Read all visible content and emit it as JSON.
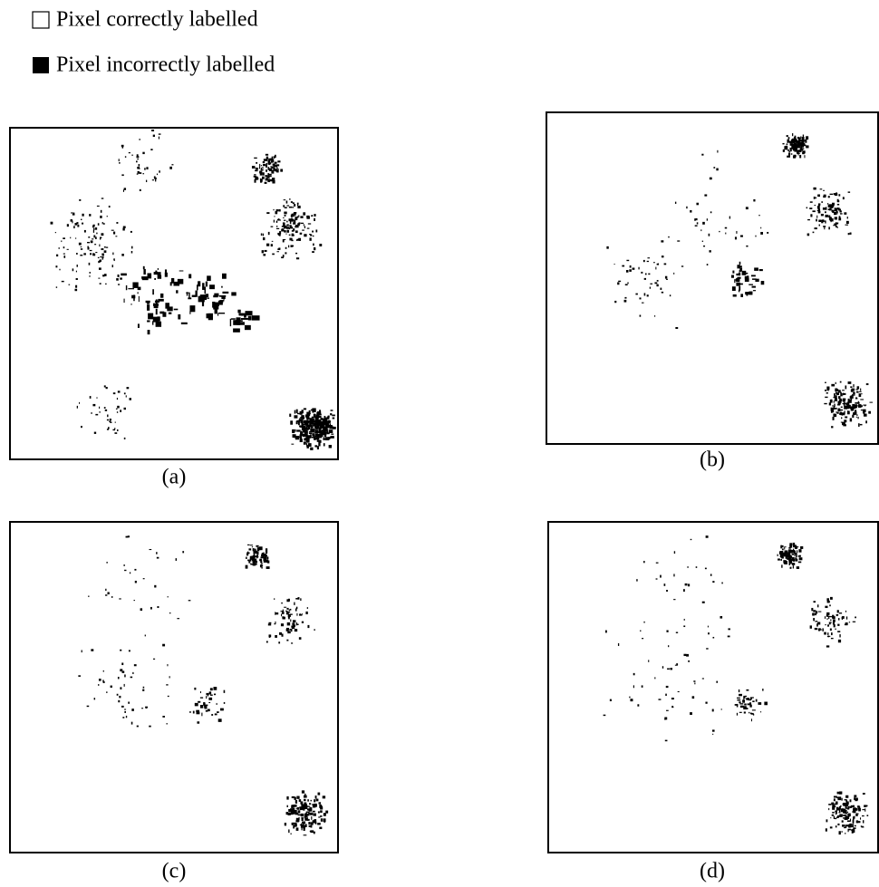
{
  "legend": [
    {
      "label": "Pixel correctly labelled"
    },
    {
      "label": "Pixel incorrectly labelled"
    }
  ],
  "panels": [
    {
      "caption": "(a)"
    },
    {
      "caption": "(b)"
    },
    {
      "caption": "(c)"
    },
    {
      "caption": "(d)"
    }
  ]
}
